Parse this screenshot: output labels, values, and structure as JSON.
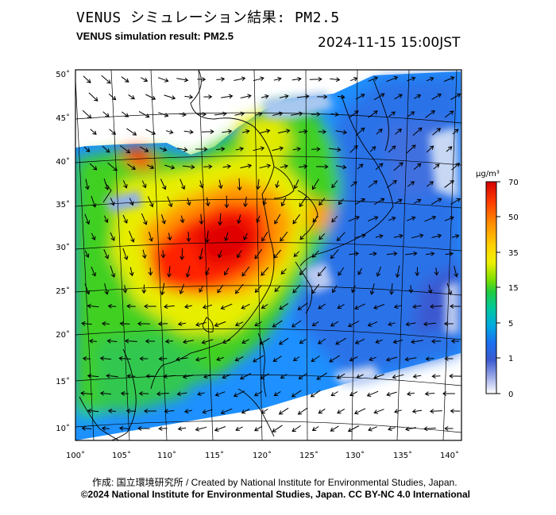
{
  "header": {
    "title_jp": "VENUS シミュレーション結果: PM2.5",
    "title_en": "VENUS simulation result: PM2.5",
    "timestamp": "2024-11-15 15:00JST"
  },
  "map": {
    "lon_ticks": [
      "100˚",
      "105˚",
      "110˚",
      "115˚",
      "120˚",
      "125˚",
      "130˚",
      "135˚",
      "140˚"
    ],
    "lat_ticks": [
      "50˚",
      "45˚",
      "40˚",
      "35˚",
      "30˚",
      "25˚",
      "20˚",
      "15˚",
      "10˚"
    ],
    "lon_range": [
      100,
      141.5
    ],
    "lat_range": [
      8.5,
      51
    ],
    "variable": "PM2.5",
    "overlay": "wind-vectors"
  },
  "colorbar": {
    "unit": "µg/m³",
    "ticks": [
      "70",
      "50",
      "35",
      "15",
      "5",
      "1",
      "0"
    ],
    "colors": [
      "#d40000",
      "#ff3000",
      "#ff7a00",
      "#ffc000",
      "#f0f000",
      "#b8ee00",
      "#50d800",
      "#00c850",
      "#00c8a0",
      "#00aae0",
      "#1a7ef0",
      "#2850d8",
      "#5a6ad8",
      "#9aa8e8",
      "#d8deef",
      "#ffffff"
    ]
  },
  "footer": {
    "credit": "作成: 国立環境研究所 / Created by National Institute for Environmental Studies, Japan.",
    "copyright": "©2024 National Institute for Environmental Studies, Japan. CC BY-NC 4.0 International"
  }
}
